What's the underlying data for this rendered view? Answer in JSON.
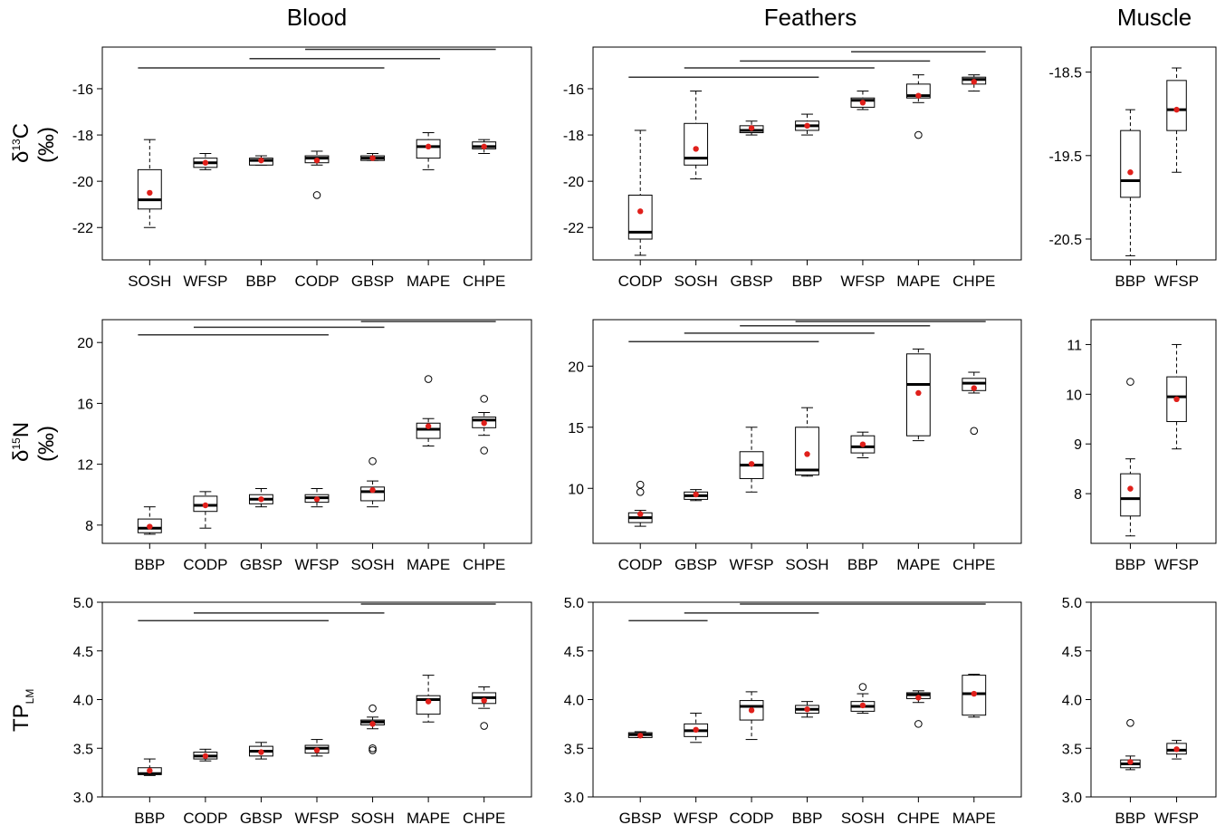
{
  "columns": {
    "blood": "Blood",
    "feathers": "Feathers",
    "muscle": "Muscle"
  },
  "row_labels": {
    "d13c": {
      "prefix": "δ",
      "sup": "13",
      "main": "C (‰)"
    },
    "d15n": {
      "prefix": "δ",
      "sup": "15",
      "main": "N (‰)"
    },
    "tp": {
      "main": "TP",
      "sub": "LM"
    }
  },
  "colors": {
    "box": "#000000",
    "median": "#000000",
    "mean_dot": "#e0201b",
    "bar": "#333333"
  },
  "chart_data": [
    {
      "type": "boxplot",
      "panel": "blood-d13c",
      "ylim": [
        -23.4,
        -14.2
      ],
      "yticks": [
        -16,
        -18,
        -20,
        -22
      ],
      "categories": [
        "SOSH",
        "WFSP",
        "BBP",
        "CODP",
        "GBSP",
        "MAPE",
        "CHPE"
      ],
      "boxes": [
        {
          "wmin": -22.0,
          "q1": -21.2,
          "median": -20.8,
          "q3": -19.5,
          "wmax": -18.2,
          "mean": -20.5,
          "outliers": []
        },
        {
          "wmin": -19.5,
          "q1": -19.4,
          "median": -19.2,
          "q3": -19.0,
          "wmax": -18.8,
          "mean": -19.2,
          "outliers": []
        },
        {
          "wmin": -19.3,
          "q1": -19.3,
          "median": -19.1,
          "q3": -19.0,
          "wmax": -18.9,
          "mean": -19.1,
          "outliers": []
        },
        {
          "wmin": -19.3,
          "q1": -19.2,
          "median": -19.0,
          "q3": -18.9,
          "wmax": -18.7,
          "mean": -19.1,
          "outliers": [
            -20.6
          ]
        },
        {
          "wmin": -19.1,
          "q1": -19.1,
          "median": -19.0,
          "q3": -18.9,
          "wmax": -18.8,
          "mean": -19.0,
          "outliers": []
        },
        {
          "wmin": -19.5,
          "q1": -19.0,
          "median": -18.5,
          "q3": -18.2,
          "wmax": -17.9,
          "mean": -18.5,
          "outliers": []
        },
        {
          "wmin": -18.8,
          "q1": -18.6,
          "median": -18.5,
          "q3": -18.3,
          "wmax": -18.2,
          "mean": -18.5,
          "outliers": []
        }
      ],
      "bars": [
        [
          0,
          4,
          -15.1
        ],
        [
          2,
          5,
          -14.7
        ],
        [
          3,
          6,
          -14.3
        ]
      ]
    },
    {
      "type": "boxplot",
      "panel": "feathers-d13c",
      "ylim": [
        -23.4,
        -14.2
      ],
      "yticks": [
        -16,
        -18,
        -20,
        -22
      ],
      "categories": [
        "CODP",
        "SOSH",
        "GBSP",
        "BBP",
        "WFSP",
        "MAPE",
        "CHPE"
      ],
      "boxes": [
        {
          "wmin": -23.2,
          "q1": -22.5,
          "median": -22.2,
          "q3": -20.6,
          "wmax": -17.8,
          "mean": -21.3,
          "outliers": []
        },
        {
          "wmin": -19.9,
          "q1": -19.3,
          "median": -19.0,
          "q3": -17.5,
          "wmax": -16.1,
          "mean": -18.6,
          "outliers": []
        },
        {
          "wmin": -18.0,
          "q1": -17.9,
          "median": -17.8,
          "q3": -17.6,
          "wmax": -17.4,
          "mean": -17.7,
          "outliers": []
        },
        {
          "wmin": -18.0,
          "q1": -17.8,
          "median": -17.6,
          "q3": -17.4,
          "wmax": -17.1,
          "mean": -17.6,
          "outliers": []
        },
        {
          "wmin": -16.9,
          "q1": -16.8,
          "median": -16.5,
          "q3": -16.4,
          "wmax": -16.1,
          "mean": -16.6,
          "outliers": []
        },
        {
          "wmin": -16.6,
          "q1": -16.4,
          "median": -16.3,
          "q3": -15.8,
          "wmax": -15.4,
          "mean": -16.3,
          "outliers": [
            -18.0
          ]
        },
        {
          "wmin": -16.1,
          "q1": -15.8,
          "median": -15.6,
          "q3": -15.5,
          "wmax": -15.4,
          "mean": -15.7,
          "outliers": []
        }
      ],
      "bars": [
        [
          0,
          3,
          -15.5
        ],
        [
          1,
          4,
          -15.1
        ],
        [
          2,
          5,
          -14.8
        ],
        [
          4,
          6,
          -14.4
        ]
      ]
    },
    {
      "type": "boxplot",
      "panel": "muscle-d13c",
      "ylim": [
        -20.75,
        -18.2
      ],
      "yticks": [
        -18.5,
        -19.5,
        -20.5
      ],
      "categories": [
        "BBP",
        "WFSP"
      ],
      "boxes": [
        {
          "wmin": -20.7,
          "q1": -20.0,
          "median": -19.8,
          "q3": -19.2,
          "wmax": -18.95,
          "mean": -19.7,
          "outliers": []
        },
        {
          "wmin": -19.7,
          "q1": -19.2,
          "median": -18.95,
          "q3": -18.6,
          "wmax": -18.45,
          "mean": -18.95,
          "outliers": []
        }
      ],
      "bars": []
    },
    {
      "type": "boxplot",
      "panel": "blood-d15n",
      "ylim": [
        6.8,
        21.5
      ],
      "yticks": [
        8,
        12,
        16,
        20
      ],
      "categories": [
        "BBP",
        "CODP",
        "GBSP",
        "WFSP",
        "SOSH",
        "MAPE",
        "CHPE"
      ],
      "boxes": [
        {
          "wmin": 7.4,
          "q1": 7.5,
          "median": 7.8,
          "q3": 8.4,
          "wmax": 9.2,
          "mean": 7.9,
          "outliers": []
        },
        {
          "wmin": 7.8,
          "q1": 8.9,
          "median": 9.3,
          "q3": 9.9,
          "wmax": 10.2,
          "mean": 9.3,
          "outliers": []
        },
        {
          "wmin": 9.2,
          "q1": 9.4,
          "median": 9.7,
          "q3": 10.0,
          "wmax": 10.4,
          "mean": 9.7,
          "outliers": []
        },
        {
          "wmin": 9.2,
          "q1": 9.5,
          "median": 9.8,
          "q3": 10.0,
          "wmax": 10.4,
          "mean": 9.7,
          "outliers": []
        },
        {
          "wmin": 9.2,
          "q1": 9.6,
          "median": 10.2,
          "q3": 10.5,
          "wmax": 10.9,
          "mean": 10.3,
          "outliers": [
            12.2
          ]
        },
        {
          "wmin": 13.2,
          "q1": 13.7,
          "median": 14.3,
          "q3": 14.7,
          "wmax": 15.0,
          "mean": 14.5,
          "outliers": [
            17.6
          ]
        },
        {
          "wmin": 13.9,
          "q1": 14.4,
          "median": 14.9,
          "q3": 15.1,
          "wmax": 15.4,
          "mean": 14.7,
          "outliers": [
            16.3,
            12.9
          ]
        }
      ],
      "bars": [
        [
          0,
          3,
          20.5
        ],
        [
          1,
          4,
          21.0
        ],
        [
          4,
          6,
          21.8
        ]
      ]
    },
    {
      "type": "boxplot",
      "panel": "feathers-d15n",
      "ylim": [
        5.5,
        23.8
      ],
      "yticks": [
        10,
        15,
        20
      ],
      "categories": [
        "CODP",
        "GBSP",
        "WFSP",
        "SOSH",
        "BBP",
        "MAPE",
        "CHPE"
      ],
      "boxes": [
        {
          "wmin": 6.9,
          "q1": 7.2,
          "median": 7.6,
          "q3": 8.0,
          "wmax": 8.2,
          "mean": 7.9,
          "outliers": [
            10.3,
            9.7
          ]
        },
        {
          "wmin": 9.0,
          "q1": 9.1,
          "median": 9.4,
          "q3": 9.7,
          "wmax": 9.9,
          "mean": 9.5,
          "outliers": []
        },
        {
          "wmin": 9.7,
          "q1": 10.8,
          "median": 11.9,
          "q3": 13.0,
          "wmax": 15.0,
          "mean": 12.0,
          "outliers": []
        },
        {
          "wmin": 11.0,
          "q1": 11.1,
          "median": 11.5,
          "q3": 15.0,
          "wmax": 16.6,
          "mean": 12.8,
          "outliers": []
        },
        {
          "wmin": 12.5,
          "q1": 12.9,
          "median": 13.4,
          "q3": 14.3,
          "wmax": 14.6,
          "mean": 13.6,
          "outliers": []
        },
        {
          "wmin": 13.9,
          "q1": 14.3,
          "median": 18.5,
          "q3": 21.0,
          "wmax": 21.4,
          "mean": 17.8,
          "outliers": []
        },
        {
          "wmin": 17.8,
          "q1": 18.0,
          "median": 18.6,
          "q3": 19.0,
          "wmax": 19.5,
          "mean": 18.2,
          "outliers": [
            14.7
          ]
        }
      ],
      "bars": [
        [
          0,
          3,
          22.0
        ],
        [
          1,
          4,
          22.7
        ],
        [
          2,
          5,
          23.3
        ],
        [
          3,
          6,
          24.2
        ]
      ]
    },
    {
      "type": "boxplot",
      "panel": "muscle-d15n",
      "ylim": [
        7.0,
        11.5
      ],
      "yticks": [
        8,
        9,
        10,
        11
      ],
      "categories": [
        "BBP",
        "WFSP"
      ],
      "boxes": [
        {
          "wmin": 7.15,
          "q1": 7.55,
          "median": 7.9,
          "q3": 8.4,
          "wmax": 8.7,
          "mean": 8.1,
          "outliers": [
            10.25
          ]
        },
        {
          "wmin": 8.9,
          "q1": 9.45,
          "median": 9.95,
          "q3": 10.35,
          "wmax": 11.0,
          "mean": 9.9,
          "outliers": []
        }
      ],
      "bars": []
    },
    {
      "type": "boxplot",
      "panel": "blood-tp",
      "ylim": [
        3.0,
        5.0
      ],
      "yticks": [
        3.0,
        3.5,
        4.0,
        4.5,
        5.0
      ],
      "categories": [
        "BBP",
        "CODP",
        "GBSP",
        "WFSP",
        "SOSH",
        "MAPE",
        "CHPE"
      ],
      "boxes": [
        {
          "wmin": 3.22,
          "q1": 3.23,
          "median": 3.24,
          "q3": 3.3,
          "wmax": 3.39,
          "mean": 3.27,
          "outliers": []
        },
        {
          "wmin": 3.37,
          "q1": 3.39,
          "median": 3.42,
          "q3": 3.46,
          "wmax": 3.49,
          "mean": 3.42,
          "outliers": []
        },
        {
          "wmin": 3.39,
          "q1": 3.42,
          "median": 3.47,
          "q3": 3.52,
          "wmax": 3.56,
          "mean": 3.46,
          "outliers": []
        },
        {
          "wmin": 3.42,
          "q1": 3.45,
          "median": 3.5,
          "q3": 3.53,
          "wmax": 3.59,
          "mean": 3.48,
          "outliers": []
        },
        {
          "wmin": 3.7,
          "q1": 3.74,
          "median": 3.77,
          "q3": 3.79,
          "wmax": 3.82,
          "mean": 3.75,
          "outliers": [
            3.91,
            3.5,
            3.48
          ]
        },
        {
          "wmin": 3.77,
          "q1": 3.85,
          "median": 4.0,
          "q3": 4.04,
          "wmax": 4.25,
          "mean": 3.98,
          "outliers": []
        },
        {
          "wmin": 3.91,
          "q1": 3.96,
          "median": 4.02,
          "q3": 4.07,
          "wmax": 4.13,
          "mean": 3.99,
          "outliers": [
            3.73
          ]
        }
      ],
      "bars": [
        [
          0,
          3,
          4.81
        ],
        [
          1,
          4,
          4.89
        ],
        [
          4,
          6,
          5.0
        ]
      ]
    },
    {
      "type": "boxplot",
      "panel": "feathers-tp",
      "ylim": [
        3.0,
        5.0
      ],
      "yticks": [
        3.0,
        3.5,
        4.0,
        4.5,
        5.0
      ],
      "categories": [
        "GBSP",
        "WFSP",
        "CODP",
        "BBP",
        "SOSH",
        "CHPE",
        "MAPE"
      ],
      "boxes": [
        {
          "wmin": 3.61,
          "q1": 3.61,
          "median": 3.64,
          "q3": 3.66,
          "wmax": 3.67,
          "mean": 3.63,
          "outliers": []
        },
        {
          "wmin": 3.56,
          "q1": 3.62,
          "median": 3.68,
          "q3": 3.75,
          "wmax": 3.86,
          "mean": 3.69,
          "outliers": []
        },
        {
          "wmin": 3.59,
          "q1": 3.79,
          "median": 3.93,
          "q3": 3.99,
          "wmax": 4.08,
          "mean": 3.89,
          "outliers": []
        },
        {
          "wmin": 3.82,
          "q1": 3.86,
          "median": 3.9,
          "q3": 3.94,
          "wmax": 3.98,
          "mean": 3.9,
          "outliers": []
        },
        {
          "wmin": 3.86,
          "q1": 3.88,
          "median": 3.93,
          "q3": 3.98,
          "wmax": 4.06,
          "mean": 3.94,
          "outliers": [
            4.13
          ]
        },
        {
          "wmin": 3.97,
          "q1": 4.01,
          "median": 4.05,
          "q3": 4.07,
          "wmax": 4.09,
          "mean": 4.02,
          "outliers": [
            3.75
          ]
        },
        {
          "wmin": 3.82,
          "q1": 3.84,
          "median": 4.06,
          "q3": 4.25,
          "wmax": 4.26,
          "mean": 4.06,
          "outliers": []
        }
      ],
      "bars": [
        [
          0,
          1,
          4.81
        ],
        [
          1,
          3,
          4.89
        ],
        [
          2,
          6,
          5.0
        ]
      ]
    },
    {
      "type": "boxplot",
      "panel": "muscle-tp",
      "ylim": [
        3.0,
        5.0
      ],
      "yticks": [
        3.0,
        3.5,
        4.0,
        4.5,
        5.0
      ],
      "categories": [
        "BBP",
        "WFSP"
      ],
      "boxes": [
        {
          "wmin": 3.28,
          "q1": 3.3,
          "median": 3.34,
          "q3": 3.38,
          "wmax": 3.42,
          "mean": 3.36,
          "outliers": [
            3.76
          ]
        },
        {
          "wmin": 3.39,
          "q1": 3.44,
          "median": 3.48,
          "q3": 3.55,
          "wmax": 3.58,
          "mean": 3.49,
          "outliers": []
        }
      ],
      "bars": []
    }
  ]
}
